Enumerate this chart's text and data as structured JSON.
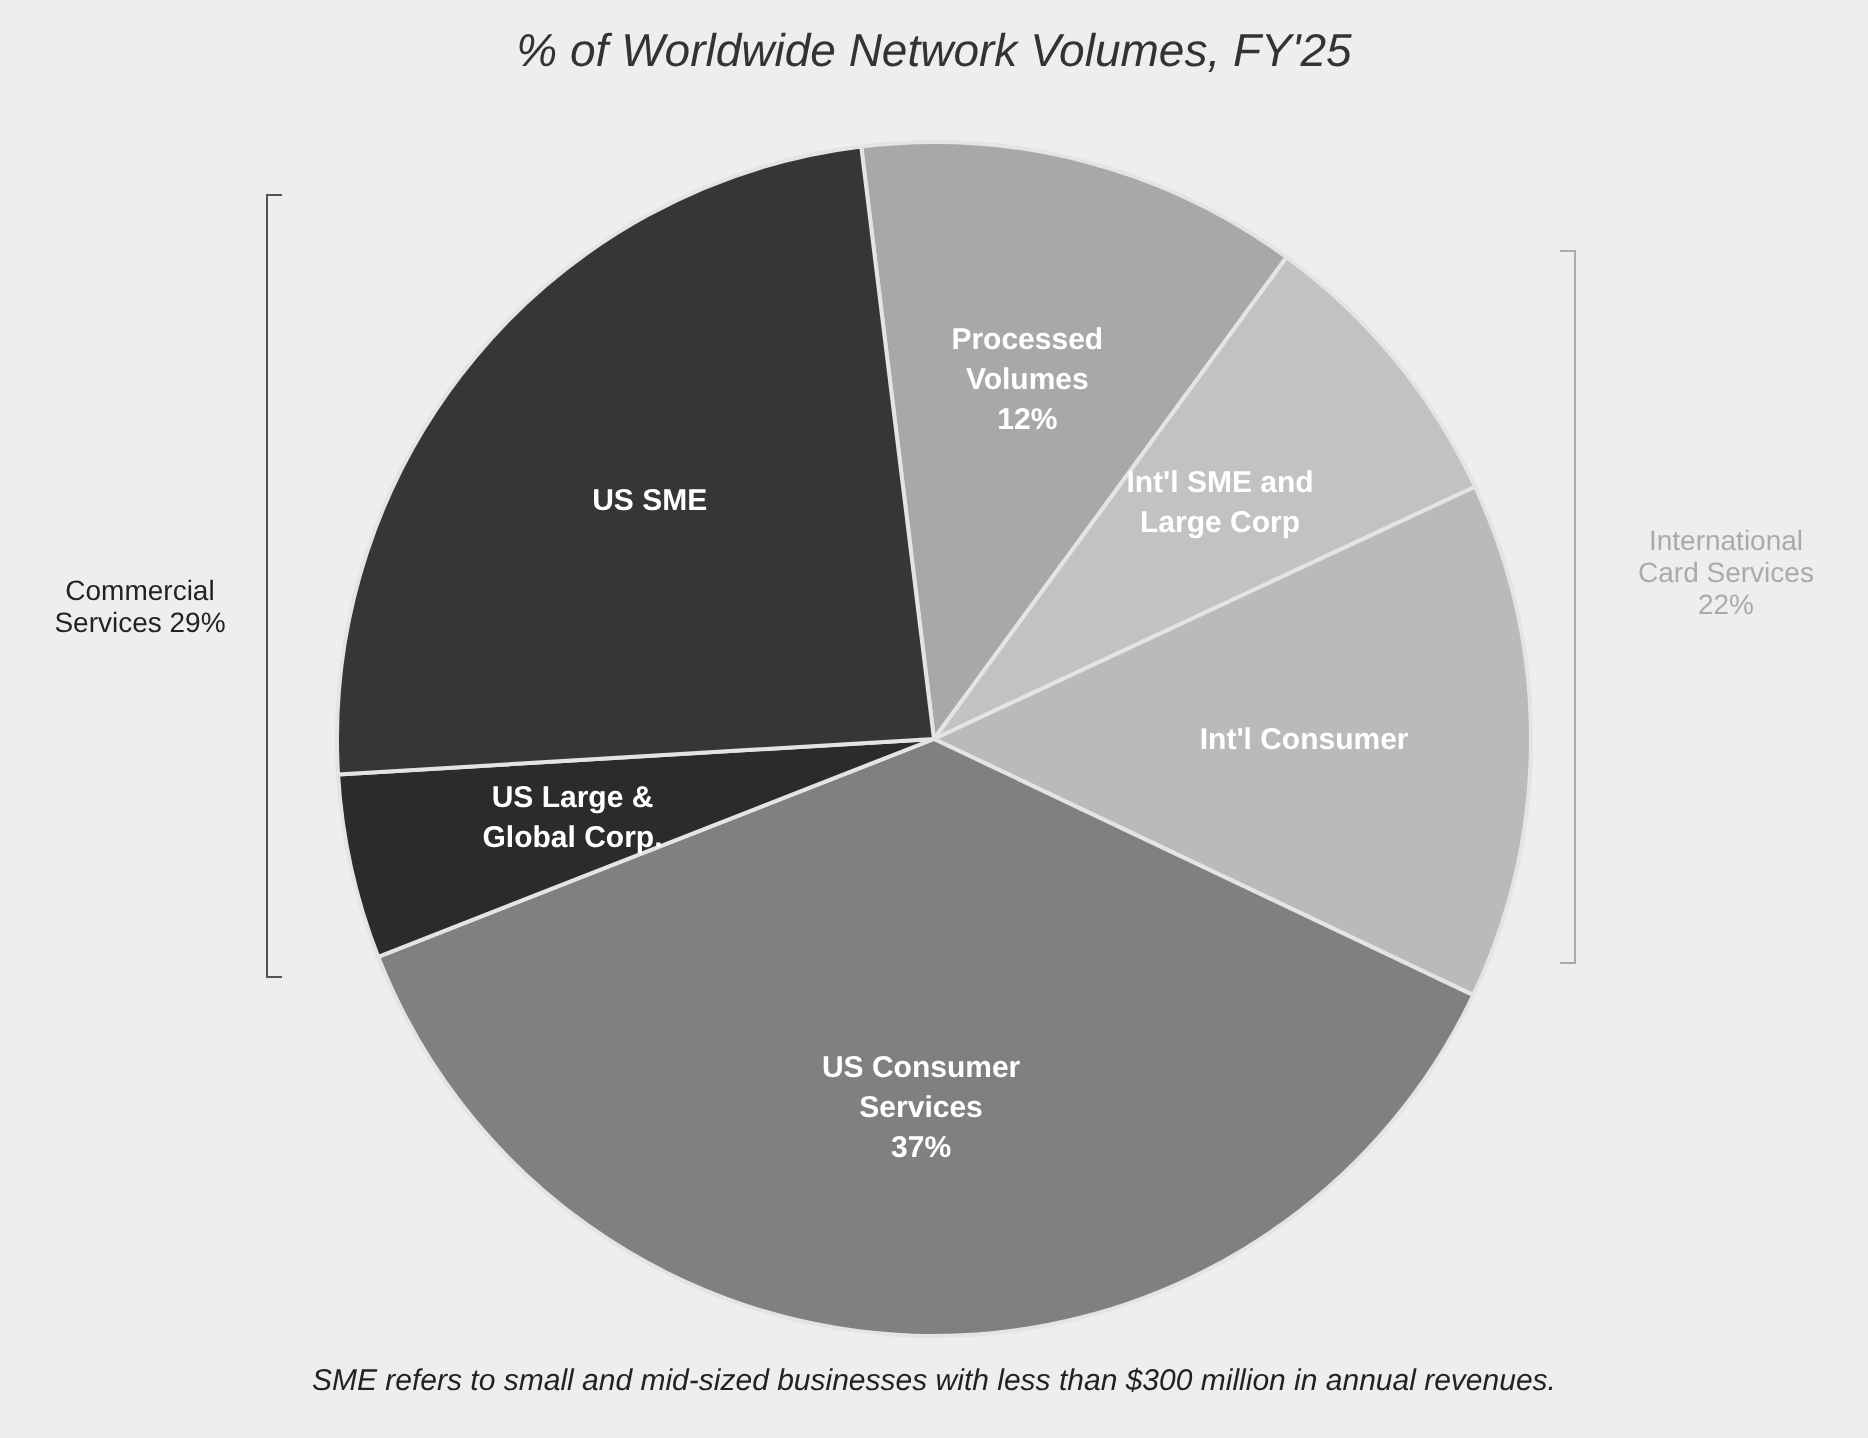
{
  "chart_data": {
    "type": "pie",
    "title": "% of Worldwide Network Volumes, FY'25",
    "categories": [
      "Processed Volumes",
      "Int'l SME and Large Corp",
      "Int'l Consumer",
      "US Consumer Services",
      "US Large & Global Corp.",
      "US SME"
    ],
    "values": [
      12,
      8,
      14,
      37,
      5,
      24
    ],
    "value_labels": [
      "12%",
      null,
      null,
      "37%",
      null,
      null
    ],
    "colors": [
      "#a8a8a8",
      "#c2c2c2",
      "#bababa",
      "#808080",
      "#2b2b2b",
      "#363636"
    ],
    "annotations": [
      "Commercial Services 29%",
      "International Card Services 22%",
      "SME refers to small and mid-sized businesses with less than $300 million in annual revenues."
    ],
    "legend": false
  }
}
